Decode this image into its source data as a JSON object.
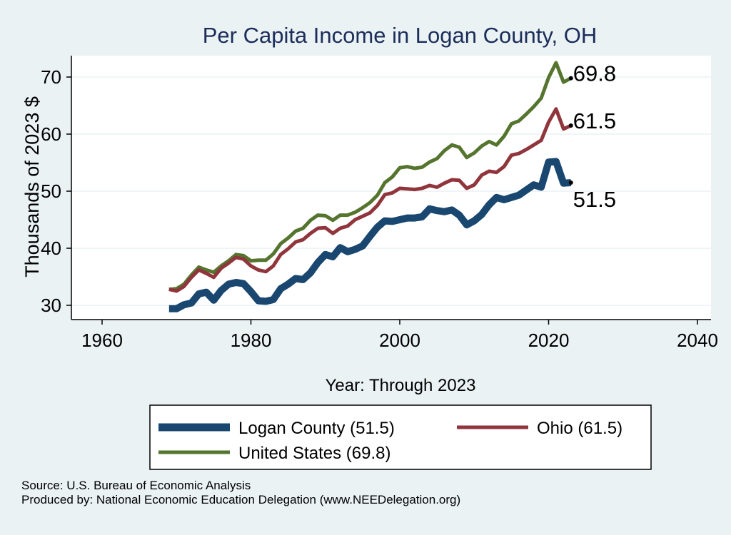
{
  "chart_data": {
    "type": "line",
    "title": "Per Capita Income in Logan County, OH",
    "xlabel": "Year: Through 2023",
    "ylabel": "Thousands of 2023 $",
    "xlim": [
      1960,
      2040
    ],
    "ylim": [
      28,
      75
    ],
    "xticks": [
      1960,
      1980,
      2000,
      2020,
      2040
    ],
    "yticks": [
      30,
      40,
      50,
      60,
      70
    ],
    "grid": true,
    "legend_position": "bottom",
    "x": [
      1969,
      1970,
      1971,
      1972,
      1973,
      1974,
      1975,
      1976,
      1977,
      1978,
      1979,
      1980,
      1981,
      1982,
      1983,
      1984,
      1985,
      1986,
      1987,
      1988,
      1989,
      1990,
      1991,
      1992,
      1993,
      1994,
      1995,
      1996,
      1997,
      1998,
      1999,
      2000,
      2001,
      2002,
      2003,
      2004,
      2005,
      2006,
      2007,
      2008,
      2009,
      2010,
      2011,
      2012,
      2013,
      2014,
      2015,
      2016,
      2017,
      2018,
      2019,
      2020,
      2021,
      2022,
      2023
    ],
    "series": [
      {
        "name": "Logan County (51.5)",
        "color": "#1a476f",
        "end_label": "51.5",
        "values": [
          29.4,
          29.4,
          30.1,
          30.4,
          32.0,
          32.3,
          30.9,
          32.6,
          33.7,
          34.0,
          33.8,
          32.4,
          30.8,
          30.7,
          31.0,
          32.9,
          33.7,
          34.7,
          34.5,
          35.7,
          37.5,
          38.9,
          38.5,
          40.1,
          39.4,
          39.8,
          40.4,
          42.1,
          43.7,
          44.8,
          44.7,
          45.0,
          45.3,
          45.3,
          45.5,
          46.9,
          46.6,
          46.4,
          46.7,
          45.8,
          44.1,
          44.8,
          45.9,
          47.6,
          48.9,
          48.5,
          48.9,
          49.3,
          50.2,
          51.1,
          50.7,
          55.1,
          55.2,
          51.4,
          51.5
        ]
      },
      {
        "name": "Ohio (61.5)",
        "color": "#90353b",
        "end_label": "61.5",
        "values": [
          32.8,
          32.5,
          33.3,
          34.9,
          36.2,
          35.6,
          34.9,
          36.5,
          37.4,
          38.4,
          38.1,
          36.9,
          36.2,
          35.9,
          36.9,
          38.9,
          39.9,
          41.1,
          41.5,
          42.6,
          43.5,
          43.6,
          42.6,
          43.5,
          43.9,
          45.0,
          45.6,
          46.2,
          47.5,
          49.4,
          49.7,
          50.5,
          50.4,
          50.3,
          50.5,
          51.0,
          50.7,
          51.4,
          52.0,
          51.9,
          50.5,
          51.1,
          52.8,
          53.5,
          53.3,
          54.3,
          56.3,
          56.6,
          57.3,
          58.1,
          58.9,
          62.1,
          64.4,
          60.9,
          61.5
        ]
      },
      {
        "name": "United States (69.8)",
        "color": "#55752f",
        "end_label": "69.8",
        "values": [
          32.8,
          32.9,
          33.7,
          35.3,
          36.7,
          36.2,
          35.8,
          36.9,
          37.8,
          38.9,
          38.7,
          37.8,
          37.9,
          37.9,
          39.0,
          40.8,
          41.8,
          43.0,
          43.5,
          44.9,
          45.8,
          45.7,
          44.9,
          45.8,
          45.8,
          46.3,
          47.1,
          48.0,
          49.3,
          51.5,
          52.5,
          54.1,
          54.3,
          54.0,
          54.2,
          55.1,
          55.7,
          57.1,
          58.1,
          57.7,
          55.9,
          56.7,
          57.9,
          58.7,
          58.1,
          59.6,
          61.8,
          62.3,
          63.5,
          64.8,
          66.3,
          69.9,
          72.5,
          69.1,
          69.8
        ]
      }
    ]
  },
  "legend": {
    "items": [
      {
        "label": "Logan County (51.5)",
        "color": "#1a476f"
      },
      {
        "label": "Ohio (61.5)",
        "color": "#90353b"
      },
      {
        "label": "United States (69.8)",
        "color": "#55752f"
      }
    ]
  },
  "footer": {
    "source": "Source: U.S. Bureau of Economic Analysis",
    "produced_by": "Produced by: National Economic Education Delegation (www.NEEDelegation.org)"
  }
}
